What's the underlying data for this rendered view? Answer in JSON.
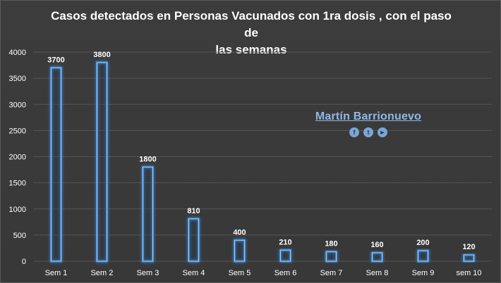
{
  "chart_data": {
    "type": "bar",
    "title": "Casos detectados en Personas Vacunados con 1ra dosis , con el paso de las semanas",
    "title_lines": [
      "Casos detectados en Personas Vacunados con 1ra dosis , con el paso de",
      "las semanas"
    ],
    "categories": [
      "Sem 1",
      "Sem 2",
      "Sem 3",
      "Sem 4",
      "Sem 5",
      "Sem 6",
      "Sem 7",
      "Sem 8",
      "Sem 9",
      "sem 10"
    ],
    "values": [
      3700,
      3800,
      1800,
      810,
      400,
      210,
      180,
      160,
      200,
      120
    ],
    "data_labels": [
      "3700",
      "3800",
      "1800",
      "810",
      "400",
      "210",
      "180",
      "160",
      "200",
      "120"
    ],
    "ylim": [
      0,
      4000
    ],
    "yticks": [
      0,
      500,
      1000,
      1500,
      2000,
      2500,
      3000,
      3500,
      4000
    ],
    "ytick_labels": [
      "0",
      "500",
      "1000",
      "1500",
      "2000",
      "2500",
      "3000",
      "3500",
      "4000"
    ],
    "grid": true,
    "legend": "none",
    "bar_style": "outlined glow",
    "colors": {
      "background": "#3a3a3a",
      "gridline": "#555555",
      "bar_outline": "#9cc8f5",
      "bar_glow": "#3f8fe0",
      "text": "#ffffff"
    }
  },
  "watermark": {
    "name": "Martín Barrionuevo",
    "icons": [
      "facebook-icon",
      "twitter-icon",
      "youtube-icon"
    ],
    "icon_glyphs": [
      "f",
      "t",
      "►"
    ]
  }
}
